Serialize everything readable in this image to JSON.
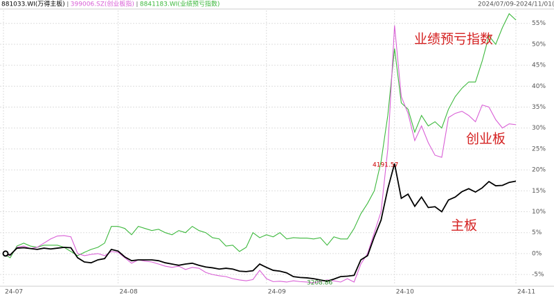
{
  "chart_data": {
    "type": "line",
    "date_range": "2024/07/09-2024/11/01(77日)",
    "xlim": [
      0,
      76
    ],
    "xticks": [
      {
        "value": 0,
        "label": "24-07"
      },
      {
        "value": 17,
        "label": "24-08"
      },
      {
        "value": 39,
        "label": "24-09"
      },
      {
        "value": 58,
        "label": "24-10"
      },
      {
        "value": 76,
        "label": "24-11"
      }
    ],
    "ylim": [
      -7.3,
      58.1
    ],
    "yticks": [
      {
        "value": -5,
        "label": "-5%"
      },
      {
        "value": 0,
        "label": "0%"
      },
      {
        "value": 5,
        "label": "5%"
      },
      {
        "value": 10,
        "label": "10%"
      },
      {
        "value": 15,
        "label": "15%"
      },
      {
        "value": 20,
        "label": "20%"
      },
      {
        "value": 25,
        "label": "25%"
      },
      {
        "value": 30,
        "label": "30%"
      },
      {
        "value": 35,
        "label": "35%"
      },
      {
        "value": 40,
        "label": "40%"
      },
      {
        "value": 45,
        "label": "45%"
      },
      {
        "value": 50,
        "label": "50%"
      },
      {
        "value": 55,
        "label": "55%"
      }
    ],
    "grid": true,
    "series": [
      {
        "name": "881033.WI(万得主板)",
        "color": "#000000",
        "values": [
          0,
          -0.3,
          1.3,
          1.4,
          1.2,
          1.0,
          1.3,
          1.1,
          1.3,
          1.5,
          1.4,
          -1.0,
          -2.0,
          -2.2,
          -1.5,
          -1.2,
          1.0,
          0.6,
          -0.8,
          -1.7,
          -1.5,
          -1.5,
          -1.5,
          -1.7,
          -2.2,
          -2.5,
          -2.8,
          -2.5,
          -2.3,
          -2.8,
          -3.2,
          -3.4,
          -3.7,
          -3.5,
          -3.7,
          -4.2,
          -4.3,
          -4.1,
          -2.5,
          -3.3,
          -4.0,
          -4.2,
          -4.6,
          -5.5,
          -5.7,
          -5.8,
          -6.0,
          -6.3,
          -6.6,
          -6.1,
          -5.5,
          -5.4,
          -5.2,
          -1.5,
          -0.5,
          4.0,
          8.0,
          15.5,
          21.5,
          13.2,
          14.2,
          11.3,
          13.5,
          11.0,
          11.2,
          10.0,
          12.8,
          13.5,
          14.8,
          15.5,
          14.7,
          15.7,
          17.2,
          16.2,
          16.3,
          17.0,
          17.3
        ]
      },
      {
        "name": "399006.SZ(创业板指)",
        "color": "#d95fd6",
        "values": [
          0,
          -0.5,
          1.5,
          1.8,
          1.2,
          1.5,
          2.5,
          3.5,
          4.2,
          4.3,
          4.0,
          0,
          -0.5,
          -0.2,
          0,
          -0.5,
          0.5,
          0.3,
          -1.0,
          -2.3,
          -1.5,
          -1.8,
          -2.0,
          -2.5,
          -3.0,
          -3.3,
          -3.0,
          -3.8,
          -3.3,
          -3.5,
          -4.5,
          -5.0,
          -5.3,
          -5.5,
          -6.0,
          -6.3,
          -6.5,
          -6.2,
          -4.0,
          -6.0,
          -6.7,
          -6.6,
          -6.8,
          -6.5,
          -6.7,
          -6.8,
          -7.0,
          -6.6,
          -6.3,
          -6.5,
          -6.8,
          -6.0,
          -6.8,
          -2.5,
          0,
          5.0,
          10.0,
          25.0,
          54.5,
          37.5,
          33.5,
          27.0,
          30.5,
          26.5,
          23.5,
          23.0,
          32.5,
          33.5,
          34.0,
          33.0,
          31.5,
          35.5,
          35.0,
          32.0,
          30.0,
          31.0,
          30.8
        ]
      },
      {
        "name": "8841183.WI(业绩预亏指数)",
        "color": "#3cb83c",
        "values": [
          0,
          -1.0,
          1.8,
          2.5,
          1.8,
          1.5,
          2.0,
          2.0,
          2.0,
          1.5,
          0.5,
          -0.5,
          0.3,
          1.0,
          1.5,
          2.5,
          6.5,
          6.5,
          6.0,
          4.5,
          6.5,
          6.0,
          5.5,
          5.8,
          5.0,
          4.5,
          5.5,
          5.0,
          6.5,
          5.5,
          5.0,
          3.8,
          3.5,
          1.8,
          2.0,
          0.5,
          1.5,
          5.0,
          3.8,
          4.5,
          4.0,
          5.0,
          3.5,
          3.8,
          3.7,
          3.7,
          3.5,
          3.8,
          2.0,
          4.0,
          3.5,
          3.5,
          6.0,
          9.5,
          12.0,
          15.0,
          22.0,
          33.0,
          49.0,
          36.0,
          34.5,
          29.0,
          33.0,
          30.5,
          31.5,
          30.0,
          34.5,
          37.5,
          39.5,
          41.0,
          41.0,
          46.0,
          52.0,
          50.0,
          54.0,
          57.3,
          55.8
        ]
      }
    ],
    "annotations": [
      "4191.57",
      "3208.86",
      "业绩预亏指数",
      "创业板",
      "主板"
    ]
  }
}
